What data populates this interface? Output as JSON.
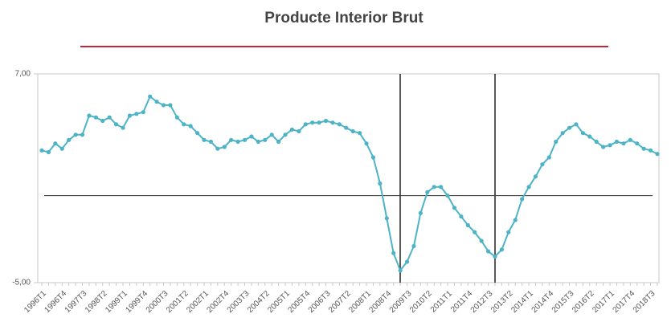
{
  "chart_data": {
    "type": "line",
    "title": "Producte Interior Brut",
    "categories": [
      "1996T1",
      null,
      null,
      "1996T4",
      null,
      null,
      "1997T3",
      null,
      null,
      "1998T2",
      null,
      null,
      "1999T1",
      null,
      null,
      "1999T4",
      null,
      null,
      "2000T3",
      null,
      null,
      "2001T2",
      null,
      null,
      "2002T1",
      null,
      null,
      "2002T4",
      null,
      null,
      "2003T3",
      null,
      null,
      "2004T2",
      null,
      null,
      "2005T1",
      null,
      null,
      "2005T4",
      null,
      null,
      "2006T3",
      null,
      null,
      "2007T2",
      null,
      null,
      "2008T1",
      null,
      null,
      "2008T4",
      null,
      null,
      "2009T3",
      null,
      null,
      "2010T2",
      null,
      null,
      "2011T1",
      null,
      null,
      "2011T4",
      null,
      null,
      "2012T3",
      null,
      null,
      "2013T2",
      null,
      null,
      "2014T1",
      null,
      null,
      "2014T4",
      null,
      null,
      "2015T3",
      null,
      null,
      "2016T2",
      null,
      null,
      "2017T1",
      null,
      null,
      "2017T4",
      null,
      null,
      "2018T3",
      null
    ],
    "values": [
      2.6,
      2.5,
      3.0,
      2.7,
      3.2,
      3.5,
      3.5,
      4.6,
      4.5,
      4.3,
      4.5,
      4.1,
      3.9,
      4.6,
      4.7,
      4.8,
      5.7,
      5.4,
      5.2,
      5.2,
      4.5,
      4.1,
      4.0,
      3.6,
      3.2,
      3.1,
      2.7,
      2.8,
      3.2,
      3.1,
      3.2,
      3.4,
      3.1,
      3.2,
      3.5,
      3.1,
      3.5,
      3.8,
      3.7,
      4.1,
      4.2,
      4.2,
      4.3,
      4.2,
      4.1,
      3.9,
      3.7,
      3.6,
      3.0,
      2.2,
      0.7,
      -1.3,
      -3.3,
      -4.3,
      -3.8,
      -2.9,
      -1.0,
      0.2,
      0.5,
      0.5,
      0.0,
      -0.7,
      -1.2,
      -1.7,
      -2.1,
      -2.6,
      -3.2,
      -3.5,
      -3.1,
      -2.1,
      -1.4,
      -0.2,
      0.5,
      1.1,
      1.8,
      2.2,
      3.1,
      3.6,
      3.9,
      4.1,
      3.6,
      3.4,
      3.1,
      2.8,
      2.9,
      3.1,
      3.0,
      3.2,
      3.0,
      2.7,
      2.6,
      2.4
    ],
    "color": "#4db3c6",
    "ylim": [
      -5,
      7
    ],
    "yticks": [
      {
        "value": -5,
        "label": "-5,00"
      },
      {
        "value": 7,
        "label": "7,00"
      }
    ],
    "hline": 0
  }
}
